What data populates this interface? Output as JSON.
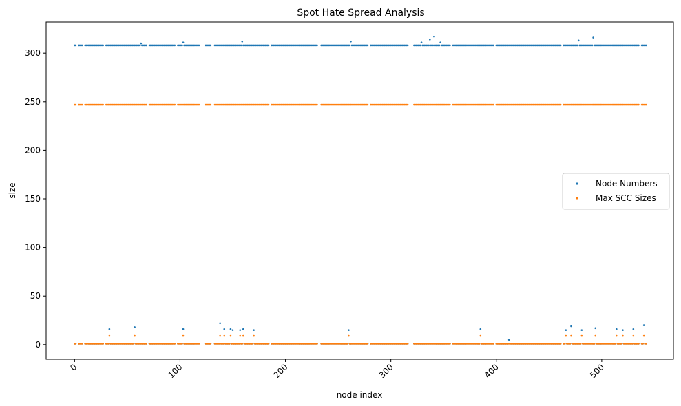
{
  "chart_data": {
    "type": "scatter",
    "title": "Spot Hate Spread Analysis",
    "xlabel": "node index",
    "ylabel": "size",
    "xlim": [
      -27,
      568
    ],
    "ylim": [
      -15,
      332
    ],
    "xticks": [
      0,
      100,
      200,
      300,
      400,
      500
    ],
    "yticks": [
      0,
      50,
      100,
      150,
      200,
      250,
      300
    ],
    "xtick_rotation": 45,
    "grid": false,
    "legend_position": "center-right",
    "series": [
      {
        "name": "Node Numbers",
        "color": "#1f77b4",
        "baseline_high": 308,
        "baseline_low": 1,
        "outliers": [
          {
            "x": 33,
            "y": 16
          },
          {
            "x": 57,
            "y": 18
          },
          {
            "x": 103,
            "y": 16
          },
          {
            "x": 138,
            "y": 22
          },
          {
            "x": 142,
            "y": 16
          },
          {
            "x": 148,
            "y": 16
          },
          {
            "x": 150,
            "y": 15
          },
          {
            "x": 157,
            "y": 15
          },
          {
            "x": 160,
            "y": 16
          },
          {
            "x": 170,
            "y": 15
          },
          {
            "x": 260,
            "y": 15
          },
          {
            "x": 385,
            "y": 16
          },
          {
            "x": 412,
            "y": 5
          },
          {
            "x": 466,
            "y": 15
          },
          {
            "x": 471,
            "y": 19
          },
          {
            "x": 481,
            "y": 15
          },
          {
            "x": 494,
            "y": 17
          },
          {
            "x": 514,
            "y": 16
          },
          {
            "x": 520,
            "y": 15
          },
          {
            "x": 530,
            "y": 16
          },
          {
            "x": 540,
            "y": 20
          },
          {
            "x": 63,
            "y": 310
          },
          {
            "x": 103,
            "y": 311
          },
          {
            "x": 159,
            "y": 312
          },
          {
            "x": 262,
            "y": 312
          },
          {
            "x": 329,
            "y": 311
          },
          {
            "x": 337,
            "y": 314
          },
          {
            "x": 341,
            "y": 317
          },
          {
            "x": 347,
            "y": 311
          },
          {
            "x": 478,
            "y": 313
          },
          {
            "x": 492,
            "y": 316
          }
        ]
      },
      {
        "name": "Max SCC Sizes",
        "color": "#ff7f0e",
        "baseline_high": 247,
        "baseline_low": 1,
        "outliers": [
          {
            "x": 33,
            "y": 9
          },
          {
            "x": 57,
            "y": 9
          },
          {
            "x": 103,
            "y": 9
          },
          {
            "x": 138,
            "y": 9
          },
          {
            "x": 142,
            "y": 9
          },
          {
            "x": 148,
            "y": 9
          },
          {
            "x": 157,
            "y": 9
          },
          {
            "x": 160,
            "y": 9
          },
          {
            "x": 170,
            "y": 9
          },
          {
            "x": 260,
            "y": 9
          },
          {
            "x": 385,
            "y": 9
          },
          {
            "x": 466,
            "y": 9
          },
          {
            "x": 471,
            "y": 9
          },
          {
            "x": 481,
            "y": 9
          },
          {
            "x": 494,
            "y": 9
          },
          {
            "x": 514,
            "y": 9
          },
          {
            "x": 520,
            "y": 9
          },
          {
            "x": 530,
            "y": 9
          },
          {
            "x": 540,
            "y": 9
          }
        ]
      }
    ],
    "gaps": [
      [
        2,
        3
      ],
      [
        8,
        9
      ],
      [
        28,
        29
      ],
      [
        69,
        70
      ],
      [
        96,
        97
      ],
      [
        119,
        123
      ],
      [
        130,
        132
      ],
      [
        185,
        186
      ],
      [
        231,
        233
      ],
      [
        279,
        280
      ],
      [
        317,
        321
      ],
      [
        357,
        358
      ],
      [
        398,
        399
      ],
      [
        462,
        463
      ],
      [
        536,
        537
      ]
    ],
    "x_count": 543
  }
}
